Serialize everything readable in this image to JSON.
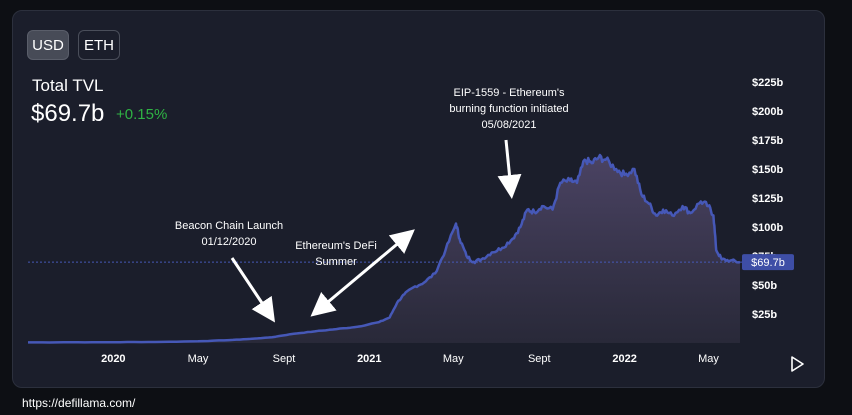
{
  "currency_toggle": {
    "options": [
      "USD",
      "ETH"
    ],
    "selected": "USD"
  },
  "header": {
    "label": "Total TVL",
    "value": "$69.7b",
    "change": "+0.15%"
  },
  "footer_url": "https://defillama.com/",
  "colors": {
    "line": "#4658b7",
    "area_top": "#4d4566",
    "current_badge": "#3e4ea6",
    "positive": "#2fb344"
  },
  "chart_data": {
    "type": "area",
    "title": "",
    "xlabel": "",
    "ylabel": "",
    "unit": "$ billions",
    "ylim": [
      0,
      225
    ],
    "x_range": [
      "2019-09-01",
      "2022-06-15"
    ],
    "yticks": [
      {
        "value": 25,
        "label": "$25b"
      },
      {
        "value": 50,
        "label": "$50b"
      },
      {
        "value": 75,
        "label": "$75b"
      },
      {
        "value": 100,
        "label": "$100b"
      },
      {
        "value": 125,
        "label": "$125b"
      },
      {
        "value": 150,
        "label": "$150b"
      },
      {
        "value": 175,
        "label": "$175b"
      },
      {
        "value": 200,
        "label": "$200b"
      },
      {
        "value": 225,
        "label": "$225b"
      }
    ],
    "xticks": [
      {
        "date": "2020-01-01",
        "label": "2020",
        "bold": true
      },
      {
        "date": "2020-05-01",
        "label": "May",
        "bold": false
      },
      {
        "date": "2020-09-01",
        "label": "Sept",
        "bold": false
      },
      {
        "date": "2021-01-01",
        "label": "2021",
        "bold": true
      },
      {
        "date": "2021-05-01",
        "label": "May",
        "bold": false
      },
      {
        "date": "2021-09-01",
        "label": "Sept",
        "bold": false
      },
      {
        "date": "2022-01-01",
        "label": "2022",
        "bold": true
      },
      {
        "date": "2022-05-01",
        "label": "May",
        "bold": false
      }
    ],
    "current": {
      "value": 69.7,
      "label": "$69.7b"
    },
    "series": [
      {
        "x": [
          "2019-09-01",
          "2019-11-01",
          "2020-01-01",
          "2020-03-01",
          "2020-05-01",
          "2020-06-15",
          "2020-07-15",
          "2020-08-15",
          "2020-09-15",
          "2020-10-15",
          "2020-11-15",
          "2020-12-15",
          "2021-01-15",
          "2021-01-30",
          "2021-02-10",
          "2021-02-20",
          "2021-03-05",
          "2021-03-20",
          "2021-04-05",
          "2021-04-20",
          "2021-05-05",
          "2021-05-10",
          "2021-05-20",
          "2021-05-30",
          "2021-06-10",
          "2021-06-25",
          "2021-07-10",
          "2021-07-25",
          "2021-08-05",
          "2021-08-15",
          "2021-08-25",
          "2021-09-05",
          "2021-09-20",
          "2021-10-01",
          "2021-10-15",
          "2021-10-25",
          "2021-11-05",
          "2021-11-15",
          "2021-11-25",
          "2021-12-05",
          "2021-12-20",
          "2022-01-01",
          "2022-01-15",
          "2022-01-25",
          "2022-02-05",
          "2022-02-15",
          "2022-02-25",
          "2022-03-10",
          "2022-03-25",
          "2022-04-05",
          "2022-04-20",
          "2022-05-01",
          "2022-05-08",
          "2022-05-12",
          "2022-05-20",
          "2022-06-01",
          "2022-06-15"
        ],
        "y": [
          0.5,
          0.6,
          0.7,
          0.9,
          1.5,
          2.5,
          3.5,
          5,
          8,
          10,
          12,
          14,
          18,
          22,
          35,
          42,
          48,
          52,
          60,
          80,
          103,
          90,
          75,
          70,
          72,
          78,
          82,
          90,
          100,
          115,
          113,
          118,
          115,
          138,
          140,
          138,
          158,
          155,
          160,
          158,
          150,
          145,
          150,
          128,
          120,
          110,
          115,
          110,
          118,
          112,
          122,
          118,
          110,
          80,
          72,
          71,
          69.7
        ]
      }
    ],
    "annotations": [
      {
        "lines": [
          "Beacon Chain Launch",
          "01/12/2020"
        ]
      },
      {
        "lines": [
          "Ethereum's DeFi",
          "Summer"
        ]
      },
      {
        "lines": [
          "EIP-1559 - Ethereum's",
          "burning function initiated",
          "05/08/2021"
        ]
      }
    ]
  }
}
